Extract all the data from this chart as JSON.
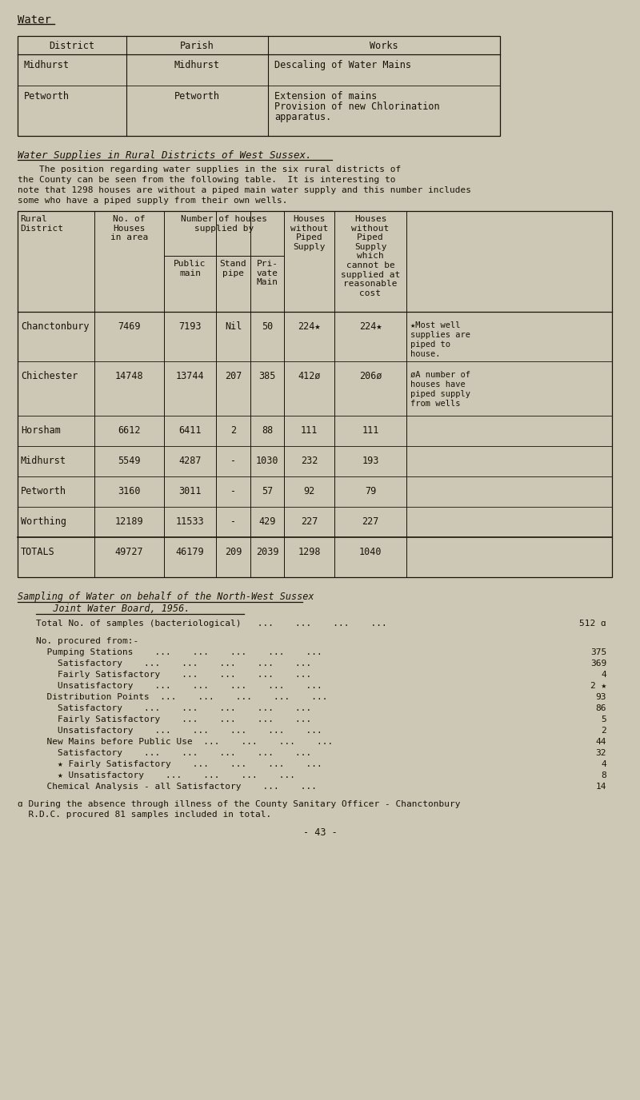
{
  "bg_color": "#cdc8b5",
  "text_color": "#1a1208",
  "page_title": "Water",
  "table1_rows": [
    [
      "Midhurst",
      "Midhurst",
      "Descaling of Water Mains"
    ],
    [
      "Petworth",
      "Petworth",
      "Extension of mains\nProvision of new Chlorination\napparatus."
    ]
  ],
  "section_title": "Water Supplies in Rural Districts of West Sussex.",
  "paragraph_lines": [
    "    The position regarding water supplies in the six rural districts of",
    "the County can be seen from the following table.  It is interesting to",
    "note that 1298 houses are without a piped main water supply and this number includes",
    "some who have a piped supply from their own wells."
  ],
  "table2_rows": [
    [
      "Chanctonbury",
      "7469",
      "7193",
      "Nil",
      "50",
      "224★",
      "224★",
      "★Most well\nsupplies are\npiped to\nhouse."
    ],
    [
      "Chichester",
      "14748",
      "13744",
      "207",
      "385",
      "412ø",
      "206ø",
      "øA number of\nhouses have\npiped supply\nfrom wells"
    ],
    [
      "Horsham",
      "6612",
      "6411",
      "2",
      "88",
      "111",
      "111",
      ""
    ],
    [
      "Midhurst",
      "5549",
      "4287",
      "-",
      "1030",
      "232",
      "193",
      ""
    ],
    [
      "Petworth",
      "3160",
      "3011",
      "-",
      "57",
      "92",
      "79",
      ""
    ],
    [
      "Worthing",
      "12189",
      "11533",
      "-",
      "429",
      "227",
      "227",
      ""
    ],
    [
      "TOTALS",
      "49727",
      "46179",
      "209",
      "2039",
      "1298",
      "1040",
      ""
    ]
  ],
  "sampling_title_line1": "Sampling of Water on behalf of the North-West Sussex",
  "sampling_title_line2": "   Joint Water Board, 1956.",
  "sampling_lines": [
    [
      "Total No. of samples (bacteriological)   ...    ...    ...    ...",
      "512 ɑ"
    ],
    [
      "",
      ""
    ],
    [
      "No. procured from:-",
      ""
    ],
    [
      "  Pumping Stations    ...    ...    ...    ...    ...",
      "375"
    ],
    [
      "    Satisfactory    ...    ...    ...    ...    ...",
      "369"
    ],
    [
      "    Fairly Satisfactory    ...    ...    ...    ...",
      "4"
    ],
    [
      "    Unsatisfactory    ...    ...    ...    ...    ...",
      "2 ★"
    ],
    [
      "  Distribution Points  ...    ...    ...    ...    ...",
      "93"
    ],
    [
      "    Satisfactory    ...    ...    ...    ...    ...",
      "86"
    ],
    [
      "    Fairly Satisfactory    ...    ...    ...    ...",
      "5"
    ],
    [
      "    Unsatisfactory    ...    ...    ...    ...    ...",
      "2"
    ],
    [
      "  New Mains before Public Use  ...    ...    ...    ...",
      "44"
    ],
    [
      "    Satisfactory    ...    ...    ...    ...    ...",
      "32"
    ],
    [
      "    ★ Fairly Satisfactory    ...    ...    ...    ...",
      "4"
    ],
    [
      "    ★ Unsatisfactory    ...    ...    ...    ...",
      "8"
    ],
    [
      "  Chemical Analysis - all Satisfactory    ...    ...",
      "14"
    ]
  ],
  "footnote_lines": [
    "ɑ During the absence through illness of the County Sanitary Officer - Chanctonbury",
    "  R.D.C. procured 81 samples included in total."
  ],
  "page_number": "- 43 -"
}
